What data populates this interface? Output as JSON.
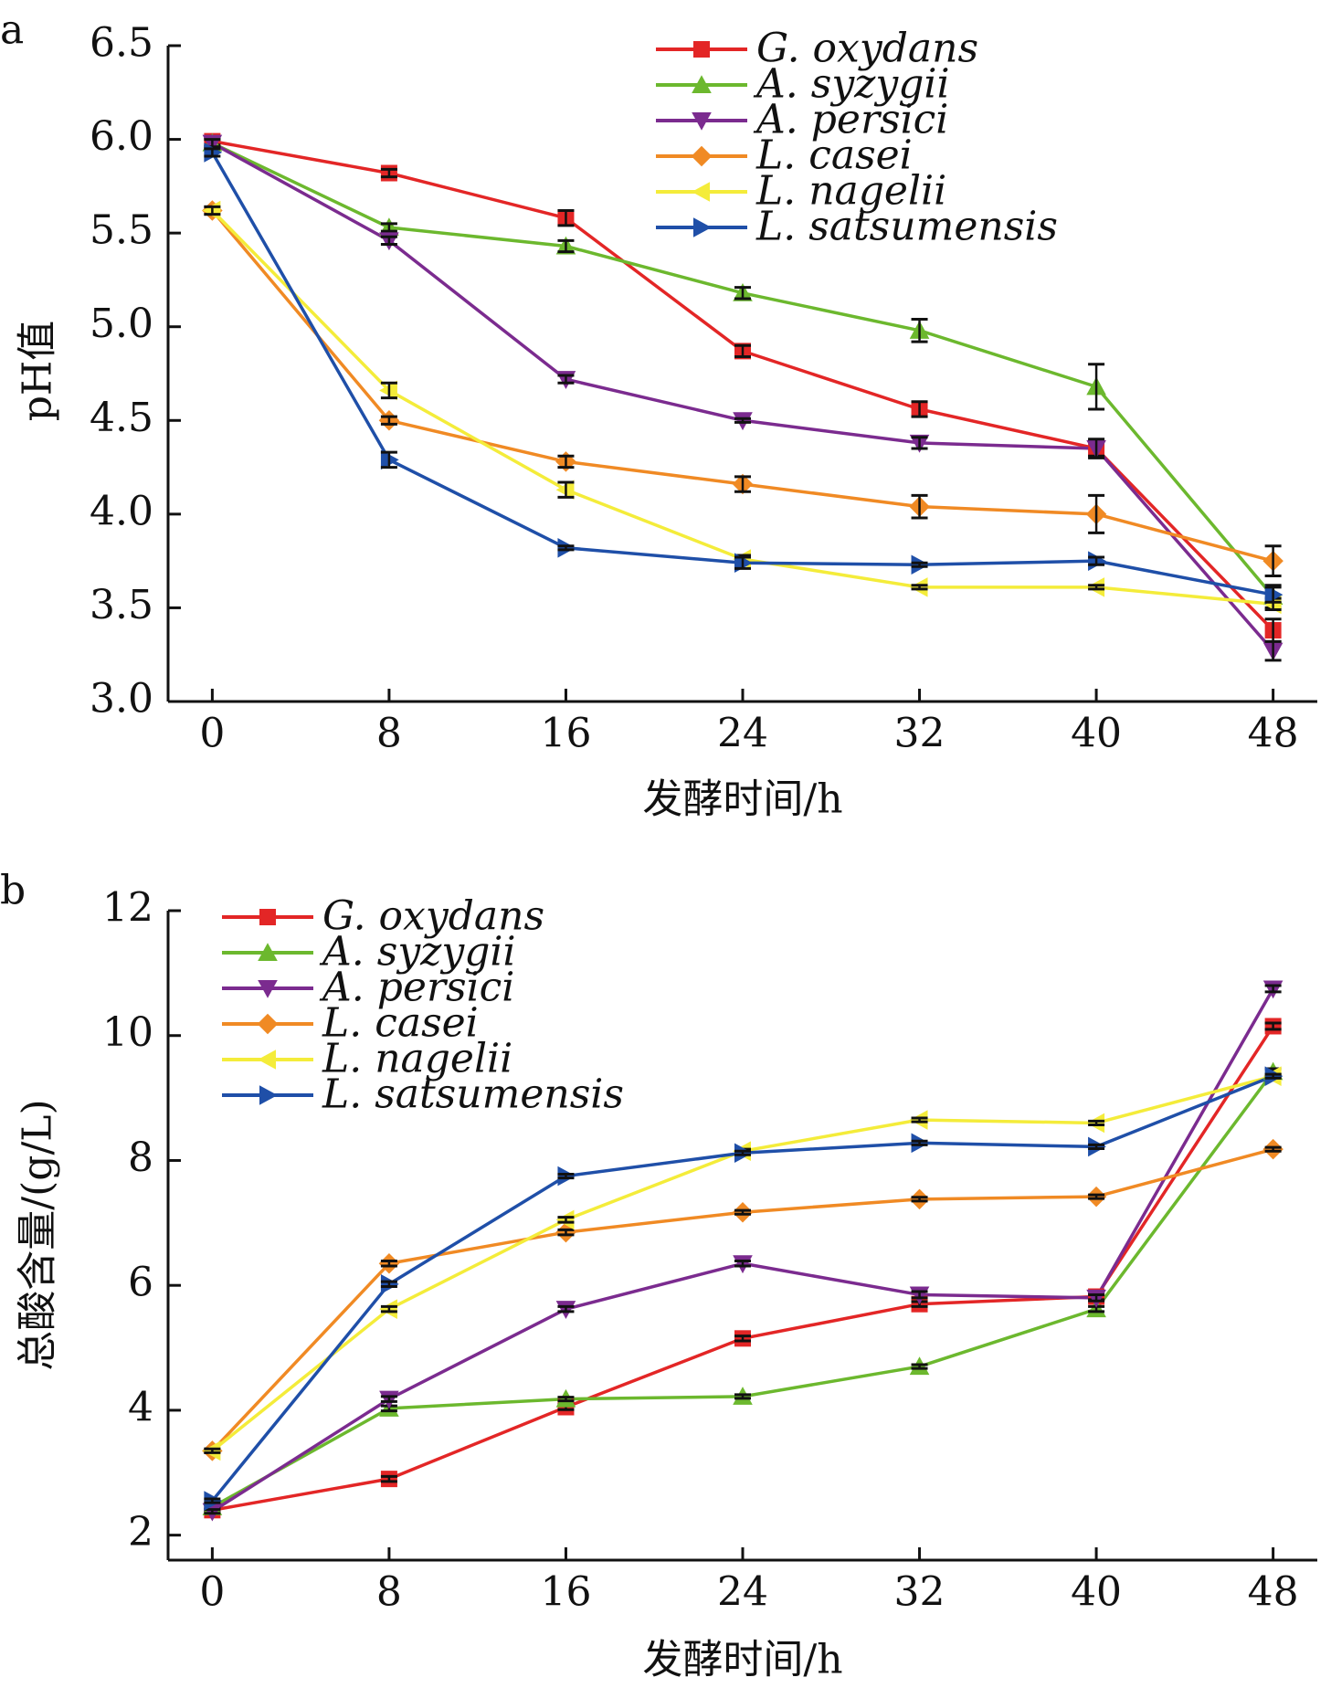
{
  "chart_data": [
    {
      "panel_label": "a",
      "type": "line",
      "xlabel": "发酵时间/h",
      "ylabel": "pH值",
      "x": [
        0,
        8,
        16,
        24,
        32,
        40,
        48
      ],
      "x_tick_labels": [
        "0",
        "8",
        "16",
        "24",
        "32",
        "40",
        "48"
      ],
      "xlim": [
        -2,
        50
      ],
      "ylim": [
        3.0,
        6.5
      ],
      "y_ticks": [
        3.0,
        3.5,
        4.0,
        4.5,
        5.0,
        5.5,
        6.0,
        6.5
      ],
      "y_tick_labels": [
        "3.0",
        "3.5",
        "4.0",
        "4.5",
        "5.0",
        "5.5",
        "6.0",
        "6.5"
      ],
      "legend_position": "top-right",
      "series": [
        {
          "name": "G. oxydans",
          "values": [
            5.99,
            5.82,
            5.58,
            4.87,
            4.56,
            4.35,
            3.38
          ],
          "errors": [
            0.02,
            0.02,
            0.04,
            0.03,
            0.04,
            0.04,
            0.06
          ],
          "color": "#e32626",
          "marker": "square"
        },
        {
          "name": "A.  syzygii",
          "values": [
            5.98,
            5.53,
            5.43,
            5.18,
            4.98,
            4.68,
            3.56
          ],
          "errors": [
            0.02,
            0.02,
            0.03,
            0.03,
            0.06,
            0.12,
            0.06
          ],
          "color": "#6cb82e",
          "marker": "triangle-up"
        },
        {
          "name": "A.  persici",
          "values": [
            5.98,
            5.46,
            4.72,
            4.5,
            4.38,
            4.35,
            3.27
          ],
          "errors": [
            0.02,
            0.02,
            0.02,
            0.01,
            0.03,
            0.05,
            0.05
          ],
          "color": "#7b2b8f",
          "marker": "triangle-down"
        },
        {
          "name": "L.  casei",
          "values": [
            5.62,
            4.5,
            4.28,
            4.16,
            4.04,
            4.0,
            3.75
          ],
          "errors": [
            0.02,
            0.02,
            0.03,
            0.04,
            0.06,
            0.1,
            0.08
          ],
          "color": "#f08a24",
          "marker": "diamond"
        },
        {
          "name": "L.  nagelii",
          "values": [
            5.62,
            4.66,
            4.13,
            3.76,
            3.61,
            3.61,
            3.52
          ],
          "errors": [
            0.02,
            0.04,
            0.04,
            0.02,
            0.01,
            0.01,
            0.03
          ],
          "color": "#f4ec3a",
          "marker": "triangle-left"
        },
        {
          "name": "L.  satsumensis",
          "values": [
            5.93,
            4.29,
            3.82,
            3.74,
            3.73,
            3.75,
            3.57
          ],
          "errors": [
            0.02,
            0.04,
            0.01,
            0.03,
            0.01,
            0.02,
            0.04
          ],
          "color": "#1f4fa8",
          "marker": "triangle-right"
        }
      ]
    },
    {
      "panel_label": "b",
      "type": "line",
      "xlabel": "发酵时间/h",
      "ylabel": "总酸含量/(g/L)",
      "x": [
        0,
        8,
        16,
        24,
        32,
        40,
        48
      ],
      "x_tick_labels": [
        "0",
        "8",
        "16",
        "24",
        "32",
        "40",
        "48"
      ],
      "xlim": [
        -2,
        50
      ],
      "ylim": [
        1.6,
        12
      ],
      "y_ticks": [
        2,
        4,
        6,
        8,
        10,
        12
      ],
      "y_tick_labels": [
        "2",
        "4",
        "6",
        "8",
        "10",
        "12"
      ],
      "legend_position": "top-left",
      "series": [
        {
          "name": "G. oxydans",
          "values": [
            2.4,
            2.9,
            4.05,
            5.15,
            5.7,
            5.82,
            10.15
          ],
          "errors": [
            0.03,
            0.04,
            0.04,
            0.04,
            0.04,
            0.05,
            0.05
          ],
          "color": "#e32626",
          "marker": "square"
        },
        {
          "name": "A.  syzygii",
          "values": [
            2.45,
            4.03,
            4.18,
            4.22,
            4.7,
            5.62,
            9.42
          ],
          "errors": [
            0.03,
            0.04,
            0.03,
            0.03,
            0.03,
            0.04,
            0.05
          ],
          "color": "#6cb82e",
          "marker": "triangle-up"
        },
        {
          "name": "A.  persici",
          "values": [
            2.38,
            4.18,
            5.62,
            6.35,
            5.85,
            5.8,
            10.75
          ],
          "errors": [
            0.03,
            0.04,
            0.04,
            0.04,
            0.05,
            0.05,
            0.05
          ],
          "color": "#7b2b8f",
          "marker": "triangle-down"
        },
        {
          "name": "L.  casei",
          "values": [
            3.35,
            6.35,
            6.85,
            7.17,
            7.38,
            7.42,
            8.18
          ],
          "errors": [
            0.03,
            0.04,
            0.04,
            0.03,
            0.03,
            0.03,
            0.03
          ],
          "color": "#f08a24",
          "marker": "diamond"
        },
        {
          "name": "L.  nagelii",
          "values": [
            3.35,
            5.62,
            7.05,
            8.15,
            8.65,
            8.6,
            9.35
          ],
          "errors": [
            0.03,
            0.04,
            0.04,
            0.03,
            0.03,
            0.03,
            0.03
          ],
          "color": "#f4ec3a",
          "marker": "triangle-left"
        },
        {
          "name": "L.  satsumensis",
          "values": [
            2.55,
            6.02,
            7.75,
            8.12,
            8.28,
            8.22,
            9.35
          ],
          "errors": [
            0.03,
            0.04,
            0.03,
            0.03,
            0.03,
            0.03,
            0.03
          ],
          "color": "#1f4fa8",
          "marker": "triangle-right"
        }
      ]
    }
  ]
}
